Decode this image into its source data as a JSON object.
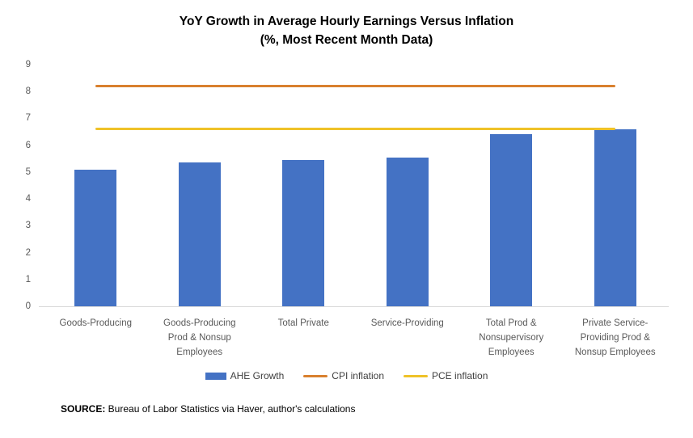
{
  "title": {
    "line1": "YoY Growth in Average Hourly Earnings Versus Inflation",
    "line2": "(%, Most Recent Month Data)"
  },
  "chart_data": {
    "type": "bar",
    "title": "YoY Growth in Average Hourly Earnings Versus Inflation (%, Most Recent Month Data)",
    "categories": [
      "Goods-Producing",
      "Goods-Producing Prod & Nonsup Employees",
      "Total Private",
      "Service-Providing",
      "Total Prod & Nonsupervisory Employees",
      "Private Service-Providing Prod & Nonsup Employees"
    ],
    "series": [
      {
        "name": "AHE Growth",
        "type": "bar",
        "color": "#4472c4",
        "values": [
          5.1,
          5.35,
          5.45,
          5.55,
          6.4,
          6.6
        ]
      },
      {
        "name": "CPI inflation",
        "type": "line",
        "color": "#d9802e",
        "value": 8.2
      },
      {
        "name": "PCE inflation",
        "type": "line",
        "color": "#efc228",
        "value": 6.6
      }
    ],
    "ylim": [
      0,
      9
    ],
    "yticks": [
      0,
      1,
      2,
      3,
      4,
      5,
      6,
      7,
      8,
      9
    ],
    "xlabel": "",
    "ylabel": "",
    "grid": false,
    "legend_position": "bottom",
    "axis_line_color": "#d9d9d9"
  },
  "source": {
    "label": "SOURCE:",
    "text": " Bureau of Labor Statistics via Haver, author's calculations"
  }
}
